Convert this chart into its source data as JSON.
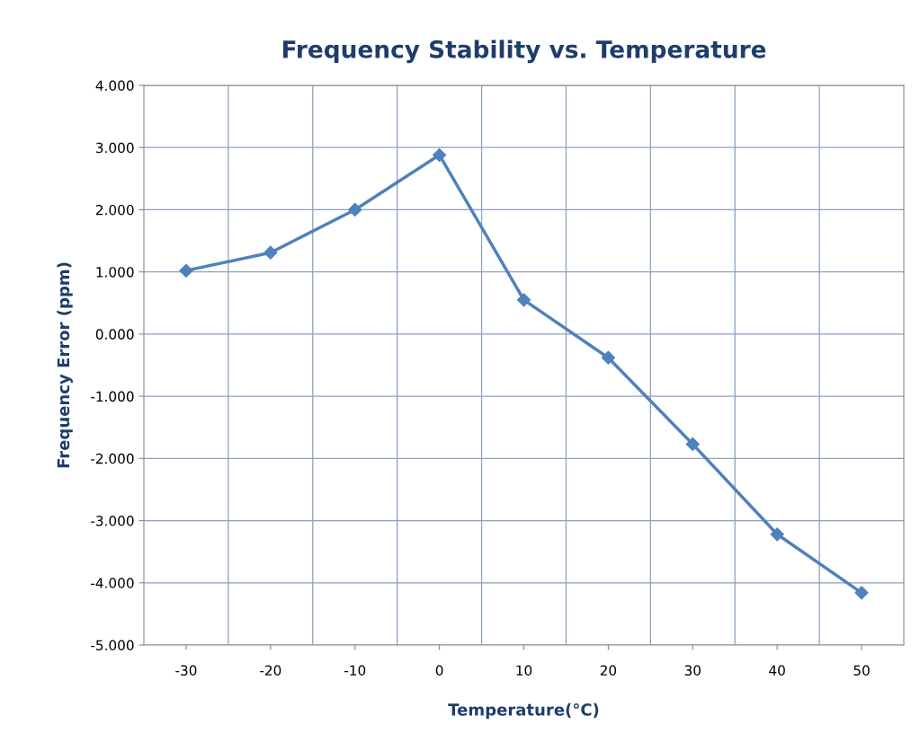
{
  "chart_data": {
    "type": "line",
    "title": "Frequency Stability vs. Temperature",
    "xlabel": "Temperature(°C)",
    "ylabel": "Frequency Error (ppm)",
    "categories": [
      "-30",
      "-20",
      "-10",
      "0",
      "10",
      "20",
      "30",
      "40",
      "50"
    ],
    "series": [
      {
        "color": "#4f81bd",
        "values": [
          1.02,
          1.31,
          2.0,
          2.88,
          0.55,
          -0.38,
          -1.77,
          -3.22,
          -4.16
        ]
      }
    ],
    "ylim": [
      -5,
      4
    ],
    "yticks": [
      {
        "value": -5,
        "label": "-5.000"
      },
      {
        "value": -4,
        "label": "-4.000"
      },
      {
        "value": -3,
        "label": "-3.000"
      },
      {
        "value": -2,
        "label": "-2.000"
      },
      {
        "value": -1,
        "label": "-1.000"
      },
      {
        "value": 0,
        "label": "0.000"
      },
      {
        "value": 1,
        "label": "1.000"
      },
      {
        "value": 2,
        "label": "2.000"
      },
      {
        "value": 3,
        "label": "3.000"
      },
      {
        "value": 4,
        "label": "4.000"
      }
    ],
    "grid": true,
    "marker": "diamond",
    "line_style": "solid"
  }
}
